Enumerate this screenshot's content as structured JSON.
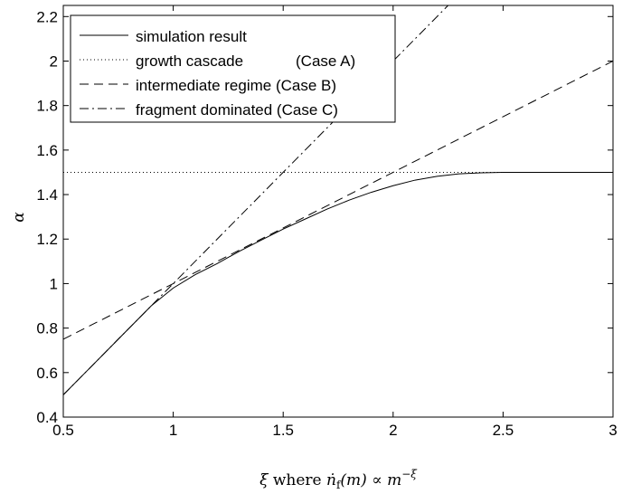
{
  "chart_data": {
    "type": "line",
    "title": "",
    "xlabel": "ξ where ṅ_f(m) ∝ m^{−ξ}",
    "xlabel_parts": {
      "xi": "ξ",
      "where": "where",
      "n": "ṅ",
      "sub": "f",
      "m": "(m) ∝ m",
      "exp": "−ξ"
    },
    "ylabel": "α",
    "xlim": [
      0.5,
      3
    ],
    "ylim": [
      0.4,
      2.25
    ],
    "xticks": [
      0.5,
      1,
      1.5,
      2,
      2.5,
      3
    ],
    "xtick_labels": [
      "0.5",
      "1",
      "1.5",
      "2",
      "2.5",
      "3"
    ],
    "yticks": [
      0.4,
      0.6,
      0.8,
      1.0,
      1.2,
      1.4,
      1.6,
      1.8,
      2.0,
      2.2
    ],
    "ytick_labels": [
      "0.4",
      "0.6",
      "0.8",
      "1",
      "1.2",
      "1.4",
      "1.6",
      "1.8",
      "2",
      "2.2"
    ],
    "grid": false,
    "legend_position": "top-left",
    "series": [
      {
        "name": "simulation result",
        "style": "solid",
        "x": [
          0.5,
          0.6,
          0.7,
          0.8,
          0.9,
          1.0,
          1.1,
          1.2,
          1.3,
          1.4,
          1.5,
          1.6,
          1.7,
          1.8,
          1.9,
          2.0,
          2.1,
          2.2,
          2.3,
          2.4,
          2.5,
          2.6,
          2.7,
          2.8,
          2.9,
          3.0
        ],
        "y": [
          0.5,
          0.6,
          0.7,
          0.8,
          0.9,
          0.98,
          1.04,
          1.09,
          1.145,
          1.195,
          1.245,
          1.29,
          1.335,
          1.375,
          1.41,
          1.44,
          1.465,
          1.482,
          1.493,
          1.498,
          1.5,
          1.5,
          1.5,
          1.5,
          1.5,
          1.5
        ]
      },
      {
        "name": "growth cascade",
        "case": "(Case A)",
        "style": "dotted",
        "x": [
          0.5,
          3.0
        ],
        "y": [
          1.5,
          1.5
        ]
      },
      {
        "name": "intermediate regime (Case B)",
        "style": "dashed",
        "x": [
          0.5,
          3.0
        ],
        "y": [
          0.75,
          2.0
        ]
      },
      {
        "name": "fragment dominated (Case C)",
        "style": "dashdot",
        "x": [
          0.5,
          2.25
        ],
        "y": [
          0.5,
          2.25
        ]
      }
    ]
  }
}
